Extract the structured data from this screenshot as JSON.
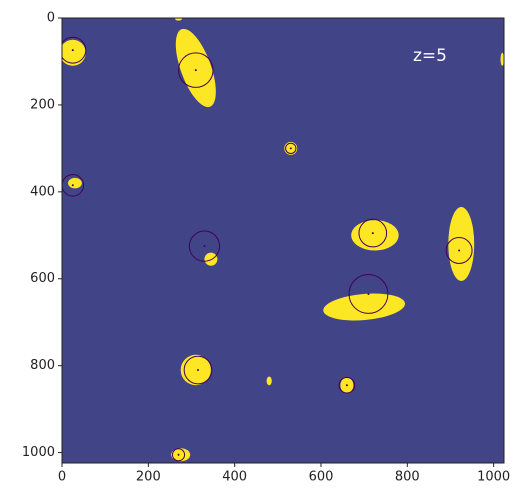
{
  "chart_data": {
    "type": "image",
    "annotation": "z=5",
    "background": "#414487",
    "blob_color": "#fde725",
    "circle_color": "#440154",
    "xlim": [
      0,
      1024
    ],
    "ylim": [
      1024,
      0
    ],
    "xticks": [
      0,
      200,
      400,
      600,
      800,
      1000
    ],
    "yticks": [
      0,
      200,
      400,
      600,
      800,
      1000
    ],
    "blobs": {
      "x": [
        25,
        310,
        530,
        30,
        345,
        725,
        925,
        700,
        310,
        660,
        275,
        480,
        1020,
        270
      ],
      "y": [
        80,
        115,
        300,
        380,
        555,
        500,
        520,
        665,
        810,
        845,
        1005,
        835,
        95,
        2
      ],
      "rx": [
        30,
        35,
        15,
        16,
        15,
        55,
        30,
        95,
        35,
        15,
        22,
        6,
        4,
        8
      ],
      "ry": [
        30,
        95,
        15,
        12,
        15,
        35,
        85,
        30,
        35,
        18,
        15,
        10,
        15,
        4
      ],
      "angle": [
        0,
        -20,
        0,
        0,
        -30,
        0,
        0,
        -5,
        0,
        0,
        0,
        0,
        0,
        0
      ]
    },
    "circles": {
      "x": [
        25,
        310,
        530,
        25,
        330,
        720,
        920,
        710,
        315,
        660,
        270
      ],
      "y": [
        74,
        120,
        300,
        385,
        525,
        495,
        535,
        635,
        810,
        845,
        1005
      ],
      "r": [
        30,
        40,
        12,
        25,
        35,
        32,
        30,
        45,
        32,
        18,
        14
      ]
    }
  }
}
